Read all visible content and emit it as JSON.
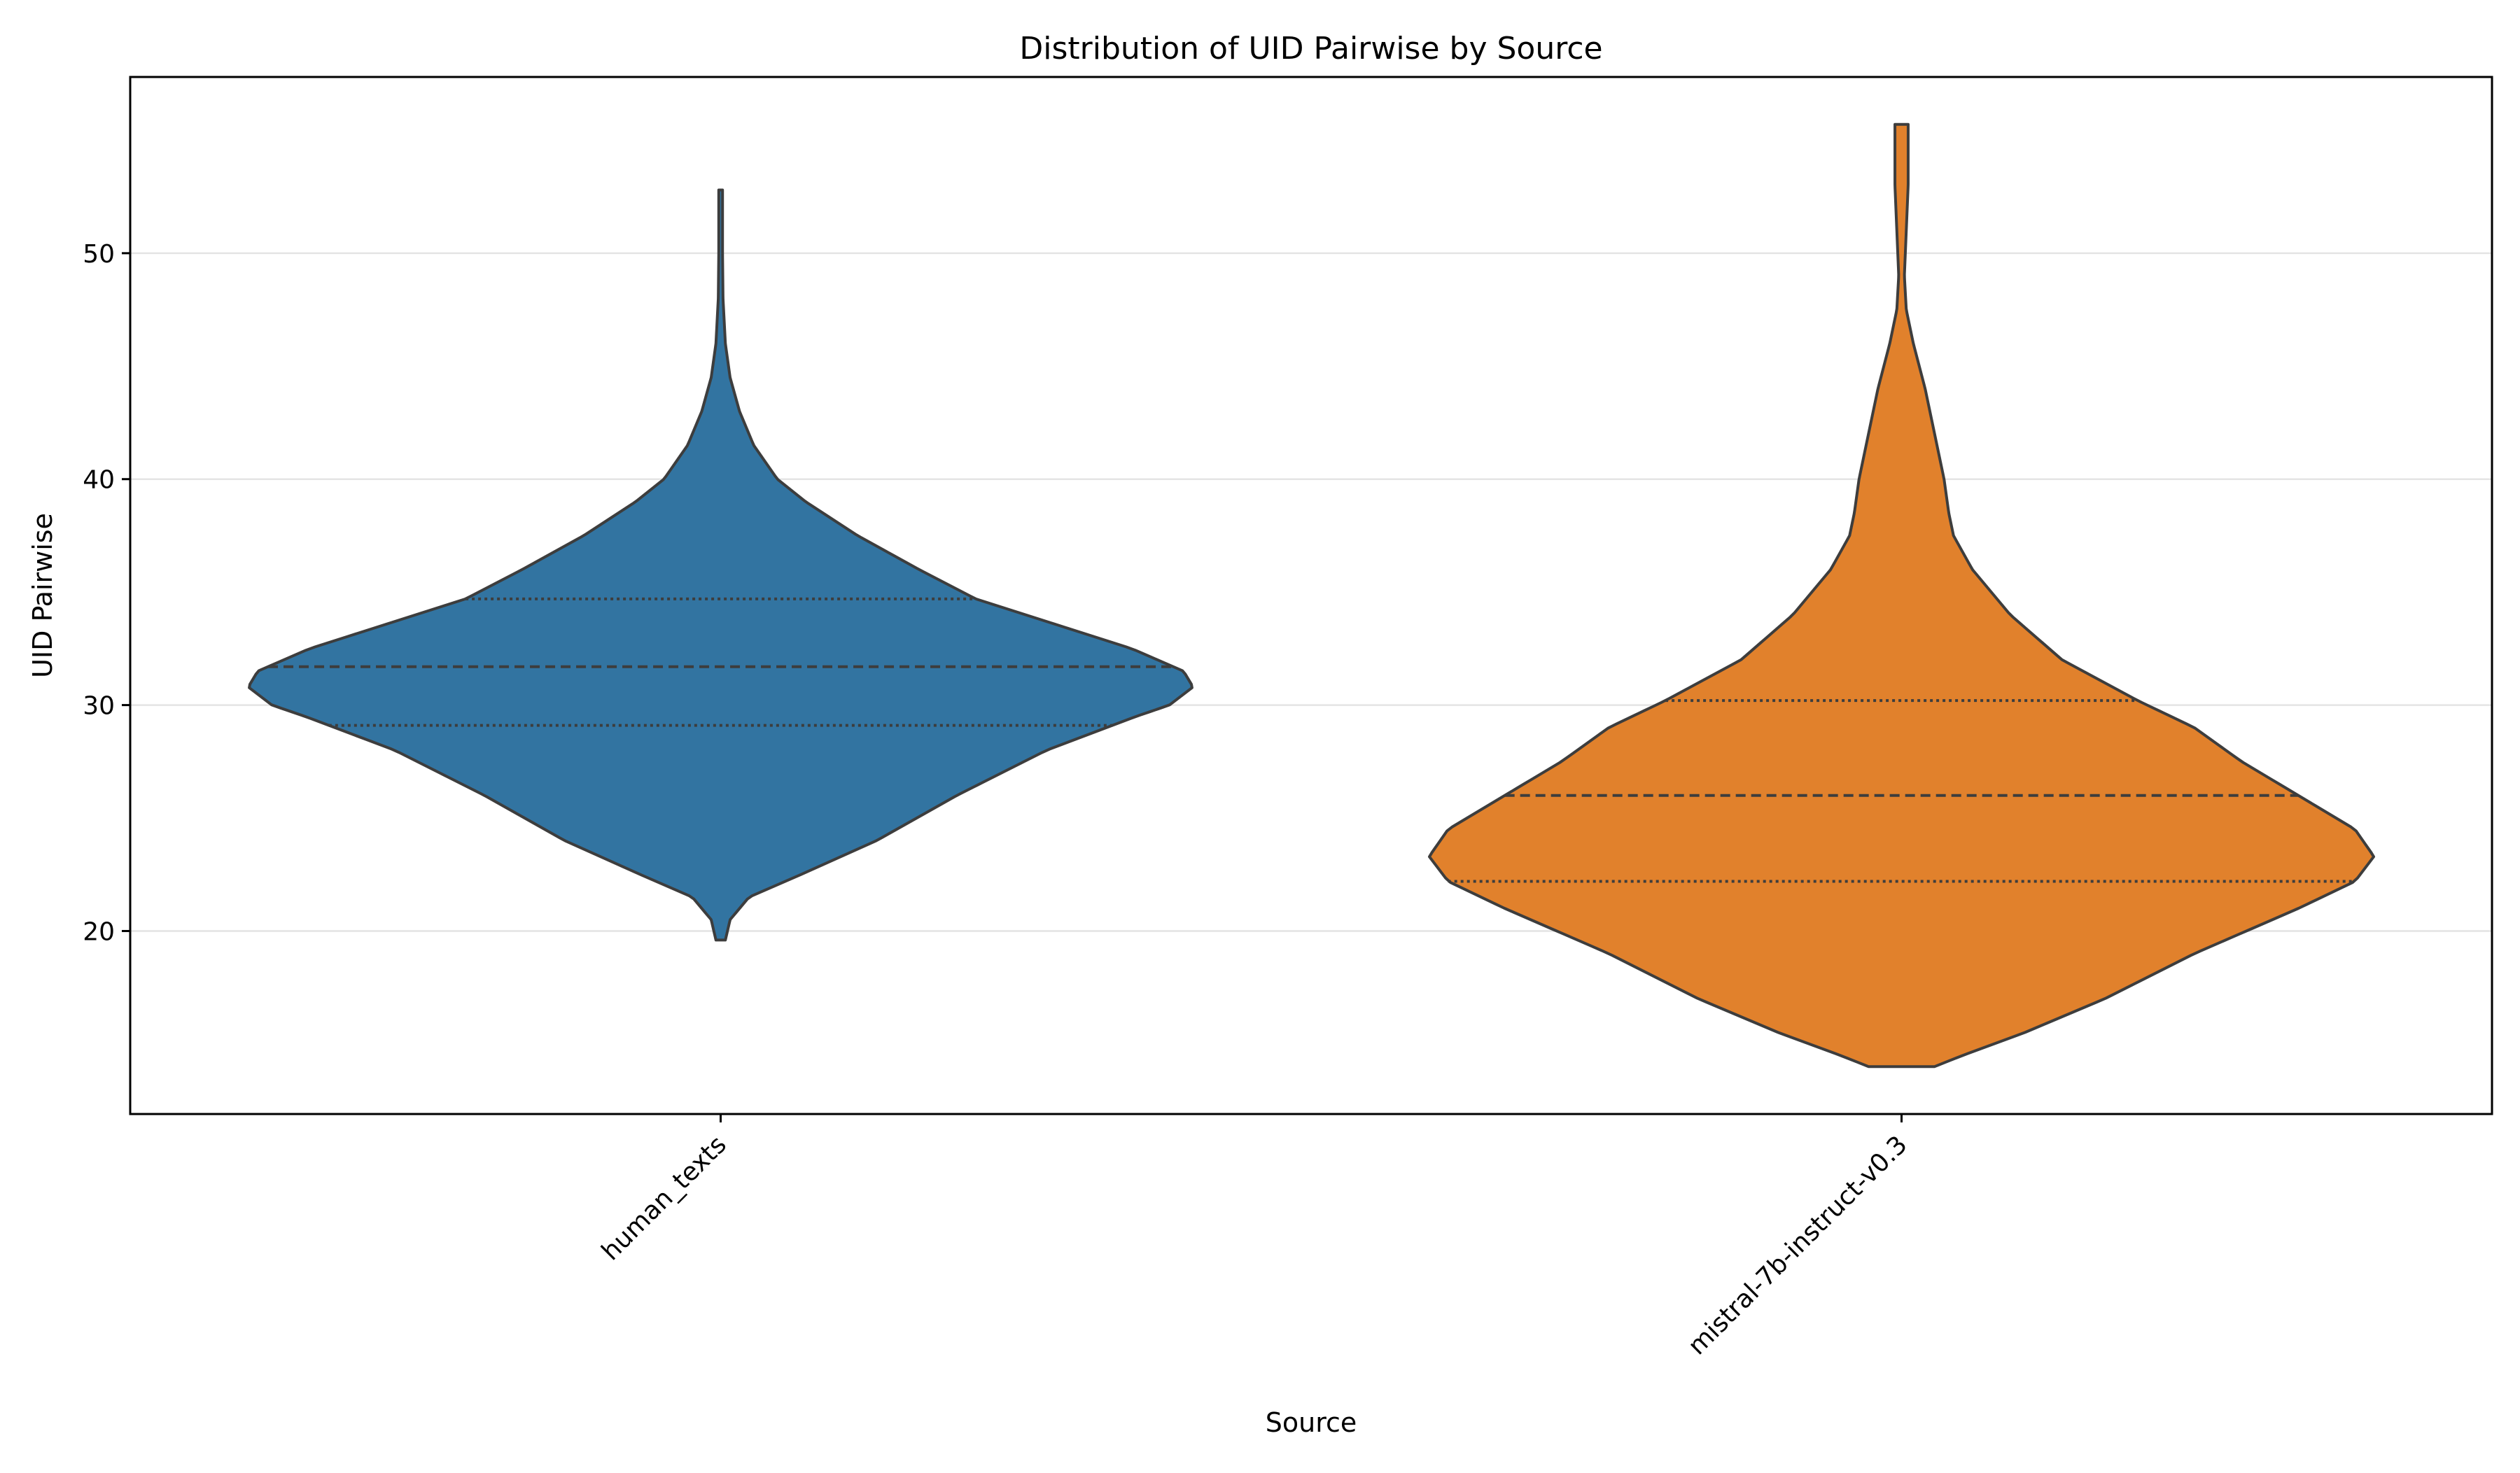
{
  "chart_data": {
    "type": "violin",
    "title": "Distribution of UID Pairwise by Source",
    "xlabel": "Source",
    "ylabel": "UID Pairwise",
    "ylim": [
      11.9,
      57.8
    ],
    "yticks": [
      20,
      30,
      40,
      50
    ],
    "grid": "horizontal",
    "inner": "quartile lines (median dashed, quartiles dotted)",
    "categories": [
      "human_texts",
      "mistral-7b-instruct-v0.3"
    ],
    "colors": [
      "#3274a1",
      "#e1812c"
    ],
    "edge_color": "#3d3d3d",
    "series": [
      {
        "category": "human_texts",
        "min": 19.6,
        "q1": 29.1,
        "median": 31.7,
        "q3": 34.7,
        "max": 52.8,
        "density_profile": [
          [
            19.6,
            0.01
          ],
          [
            20.5,
            0.02
          ],
          [
            21.5,
            0.06
          ],
          [
            22.5,
            0.17
          ],
          [
            24.0,
            0.33
          ],
          [
            26.0,
            0.5
          ],
          [
            28.0,
            0.69
          ],
          [
            29.5,
            0.88
          ],
          [
            30.0,
            0.95
          ],
          [
            30.8,
            1.0
          ],
          [
            31.5,
            0.98
          ],
          [
            32.5,
            0.87
          ],
          [
            33.5,
            0.72
          ],
          [
            34.7,
            0.54
          ],
          [
            36.0,
            0.42
          ],
          [
            37.5,
            0.29
          ],
          [
            39.0,
            0.18
          ],
          [
            40.0,
            0.12
          ],
          [
            41.5,
            0.07
          ],
          [
            43.0,
            0.04
          ],
          [
            44.5,
            0.02
          ],
          [
            46.0,
            0.01
          ],
          [
            48.0,
            0.005
          ],
          [
            50.0,
            0.004
          ],
          [
            52.8,
            0.004
          ]
        ]
      },
      {
        "category": "mistral-7b-instruct-v0.3",
        "min": 14.0,
        "q1": 22.2,
        "median": 26.0,
        "q3": 30.2,
        "max": 55.7,
        "density_profile": [
          [
            14.0,
            0.07
          ],
          [
            14.5,
            0.13
          ],
          [
            15.5,
            0.26
          ],
          [
            17.0,
            0.43
          ],
          [
            19.0,
            0.62
          ],
          [
            21.0,
            0.84
          ],
          [
            22.2,
            0.96
          ],
          [
            23.3,
            1.0
          ],
          [
            24.5,
            0.96
          ],
          [
            26.0,
            0.84
          ],
          [
            27.5,
            0.72
          ],
          [
            29.0,
            0.62
          ],
          [
            30.2,
            0.5
          ],
          [
            32.0,
            0.34
          ],
          [
            34.0,
            0.23
          ],
          [
            36.0,
            0.15
          ],
          [
            37.5,
            0.11
          ],
          [
            38.5,
            0.1
          ],
          [
            40.0,
            0.09
          ],
          [
            42.0,
            0.07
          ],
          [
            44.0,
            0.05
          ],
          [
            46.0,
            0.025
          ],
          [
            47.5,
            0.01
          ],
          [
            49.0,
            0.006
          ],
          [
            51.0,
            0.01
          ],
          [
            53.0,
            0.014
          ],
          [
            55.7,
            0.014
          ]
        ]
      }
    ]
  }
}
